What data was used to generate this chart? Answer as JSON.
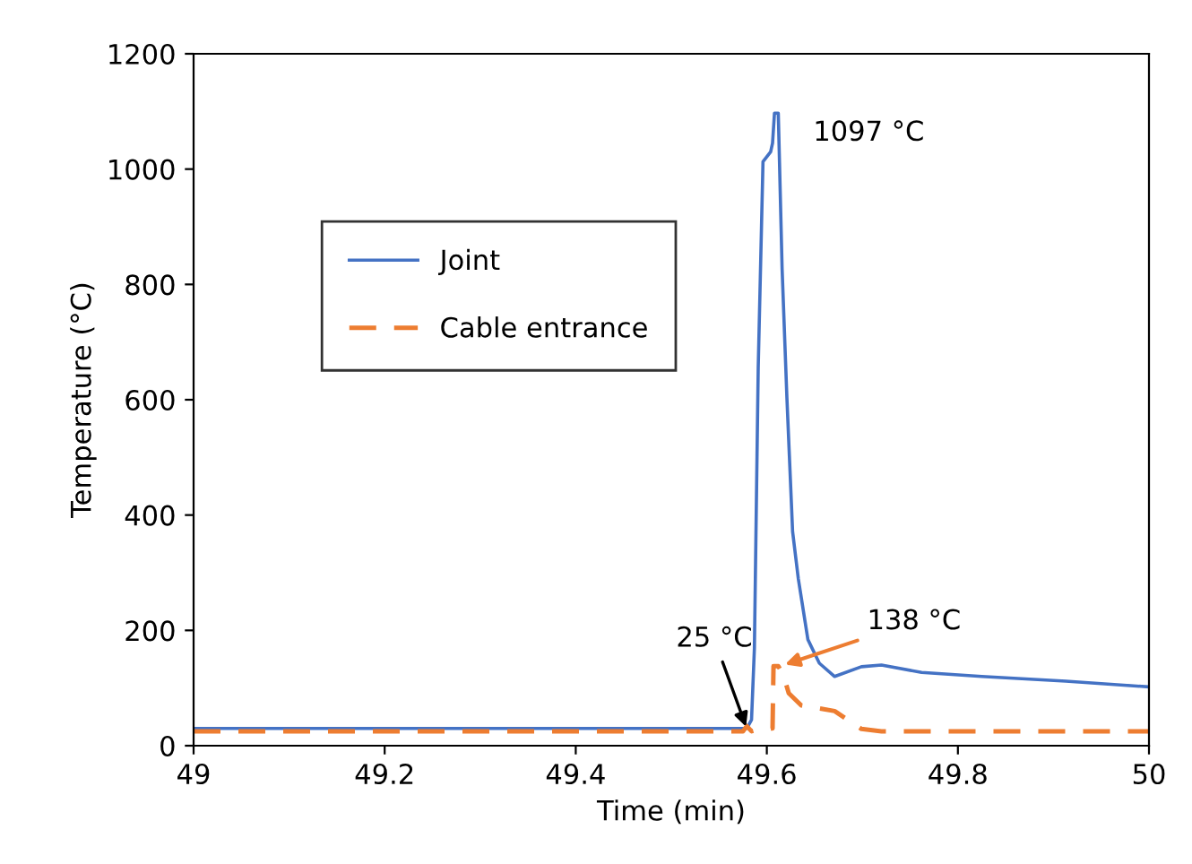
{
  "chart_data": {
    "type": "line",
    "xlabel": "Time (min)",
    "ylabel": "Temperature (°C)",
    "xlim": [
      49,
      50
    ],
    "xticks": [
      49,
      {
        "value": 49.2,
        "label": "49.2"
      },
      {
        "value": 49.4,
        "label": "49.4"
      },
      {
        "value": 49.6,
        "label": "49.6"
      },
      {
        "value": 49.8,
        "label": "49.8"
      },
      50
    ],
    "ylim": [
      0,
      1200
    ],
    "yticks": [
      0,
      200,
      400,
      600,
      800,
      1000,
      1200
    ],
    "grid": false,
    "legend": "left",
    "marker": "none",
    "series": [
      {
        "name": "Joint",
        "color": "#4472c4",
        "line_style": "solid",
        "x": [
          49,
          49.579,
          49.584,
          49.587,
          49.591,
          49.596,
          49.604,
          49.606,
          49.608,
          49.612,
          49.616,
          49.621,
          49.627,
          49.633,
          49.643,
          49.655,
          49.671,
          49.699,
          49.72,
          49.762,
          49.825,
          49.913,
          50
        ],
        "values": [
          30,
          30,
          45,
          169,
          656,
          1013,
          1030,
          1045,
          1097,
          1097,
          827,
          604,
          371,
          289,
          184,
          143,
          120,
          137,
          140,
          127,
          120,
          112,
          102
        ]
      },
      {
        "name": "Cable entrance",
        "color": "#ed7d31",
        "line_style": "dashed",
        "x": [
          49,
          49.575,
          49.579,
          49.584,
          49.594,
          49.606,
          49.607,
          49.612,
          49.617,
          49.623,
          49.636,
          49.671,
          49.699,
          49.72,
          50
        ],
        "values": [
          25,
          25,
          34,
          25,
          30,
          30,
          138,
          138,
          124,
          91,
          70,
          60,
          29,
          25,
          25
        ]
      }
    ],
    "annotations": [
      {
        "text": "1097 °C",
        "x": 49.612,
        "y": 1097
      },
      {
        "text": "138 °C",
        "x": 49.614,
        "y": 138
      },
      {
        "text": "25 °C",
        "x": 49.58,
        "y": 25
      }
    ]
  }
}
